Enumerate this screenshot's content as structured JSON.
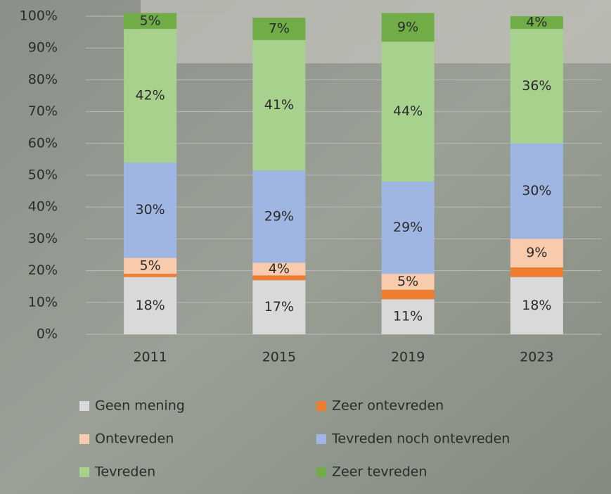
{
  "chart_data": {
    "type": "stacked-bar",
    "categories": [
      "2011",
      "2015",
      "2019",
      "2023"
    ],
    "series": [
      {
        "name": "Geen mening",
        "color": "#d9d9d9",
        "values": [
          18,
          17,
          11,
          18
        ],
        "value_labels": [
          "18%",
          "17%",
          "11%",
          "18%"
        ]
      },
      {
        "name": "Zeer ontevreden",
        "color": "#ed7d31",
        "values": [
          1,
          1.5,
          3,
          3
        ],
        "value_labels": [
          null,
          null,
          null,
          null
        ]
      },
      {
        "name": "Ontevreden",
        "color": "#f8cbad",
        "values": [
          5,
          4,
          5,
          9
        ],
        "value_labels": [
          "5%",
          "4%",
          "5%",
          "9%"
        ]
      },
      {
        "name": "Tevreden noch ontevreden",
        "color": "#9fb6e2",
        "values": [
          30,
          29,
          29,
          30
        ],
        "value_labels": [
          "30%",
          "29%",
          "29%",
          "30%"
        ]
      },
      {
        "name": "Tevreden",
        "color": "#a9d18e",
        "values": [
          42,
          41,
          44,
          36
        ],
        "value_labels": [
          "42%",
          "41%",
          "44%",
          "36%"
        ]
      },
      {
        "name": "Zeer tevreden",
        "color": "#70ad47",
        "values": [
          5,
          7,
          9,
          4
        ],
        "value_labels": [
          "5%",
          "7%",
          "9%",
          "4%"
        ]
      }
    ],
    "ylim": [
      0,
      100
    ],
    "yticks": [
      {
        "value": 0,
        "label": "0%"
      },
      {
        "value": 10,
        "label": "10%"
      },
      {
        "value": 20,
        "label": "20%"
      },
      {
        "value": 30,
        "label": "30%"
      },
      {
        "value": 40,
        "label": "40%"
      },
      {
        "value": 50,
        "label": "50%"
      },
      {
        "value": 60,
        "label": "60%"
      },
      {
        "value": 70,
        "label": "70%"
      },
      {
        "value": 80,
        "label": "80%"
      },
      {
        "value": 90,
        "label": "90%"
      },
      {
        "value": 100,
        "label": "100%"
      }
    ],
    "grid": true
  }
}
